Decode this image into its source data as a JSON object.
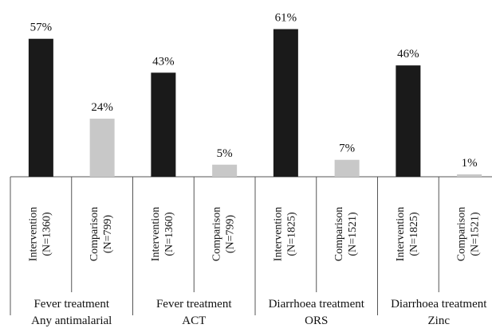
{
  "chart_data": {
    "type": "bar",
    "title": "",
    "xlabel": "",
    "ylabel": "",
    "ylim": [
      0,
      65
    ],
    "grid": false,
    "legend": "none",
    "colors": {
      "intervention": "#1a1a1a",
      "comparison": "#c8c8c8",
      "axis": "#555555"
    },
    "groups": [
      {
        "line1": "Fever treatment",
        "line2": "Any antimalarial",
        "bars": [
          {
            "label_line1": "Intervention",
            "label_line2": "(N=1360)",
            "value": 57,
            "value_label": "57%",
            "kind": "intervention"
          },
          {
            "label_line1": "Comparison",
            "label_line2": "(N=799)",
            "value": 24,
            "value_label": "24%",
            "kind": "comparison"
          }
        ]
      },
      {
        "line1": "Fever treatment",
        "line2": "ACT",
        "bars": [
          {
            "label_line1": "Intervention",
            "label_line2": "(N=1360)",
            "value": 43,
            "value_label": "43%",
            "kind": "intervention"
          },
          {
            "label_line1": "Comparison",
            "label_line2": "(N=799)",
            "value": 5,
            "value_label": "5%",
            "kind": "comparison"
          }
        ]
      },
      {
        "line1": "Diarrhoea treatment",
        "line2": "ORS",
        "bars": [
          {
            "label_line1": "Intervention",
            "label_line2": "(N=1825)",
            "value": 61,
            "value_label": "61%",
            "kind": "intervention"
          },
          {
            "label_line1": "Comparison",
            "label_line2": "(N=1521)",
            "value": 7,
            "value_label": "7%",
            "kind": "comparison"
          }
        ]
      },
      {
        "line1": "Diarrhoea treatment",
        "line2": "Zinc",
        "bars": [
          {
            "label_line1": "Intervention",
            "label_line2": "(N=1825)",
            "value": 46,
            "value_label": "46%",
            "kind": "intervention"
          },
          {
            "label_line1": "Comparison",
            "label_line2": "(N=1521)",
            "value": 1,
            "value_label": "1%",
            "kind": "comparison"
          }
        ]
      }
    ]
  }
}
